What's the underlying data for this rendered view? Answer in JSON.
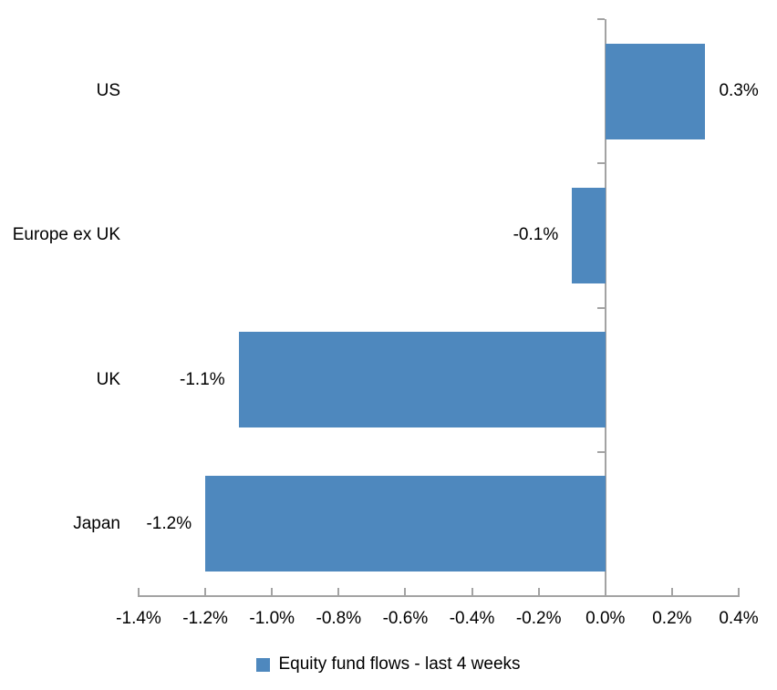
{
  "chart_data": {
    "type": "bar",
    "orientation": "horizontal",
    "title": "",
    "categories": [
      "US",
      "Europe ex UK",
      "UK",
      "Japan"
    ],
    "values": [
      0.3,
      -0.1,
      -1.1,
      -1.2
    ],
    "value_labels": [
      "0.3%",
      "-0.1%",
      "-1.1%",
      "-1.2%"
    ],
    "series_name": "Equity fund flows - last 4 weeks",
    "xlabel": "",
    "ylabel": "",
    "xlim": [
      -1.4,
      0.4
    ],
    "x_tick_step": 0.2,
    "x_tick_labels": [
      "-1.4%",
      "-1.2%",
      "-1.0%",
      "-0.8%",
      "-0.6%",
      "-0.4%",
      "-0.2%",
      "0.0%",
      "0.2%",
      "0.4%"
    ],
    "grid": false,
    "value_label_position": "outside-end",
    "legend_position": "bottom-center",
    "bar_color": "#4E88BE",
    "axis_color": "#A3A3A3",
    "text_color": "#000000",
    "background_color": "#FFFFFF"
  }
}
